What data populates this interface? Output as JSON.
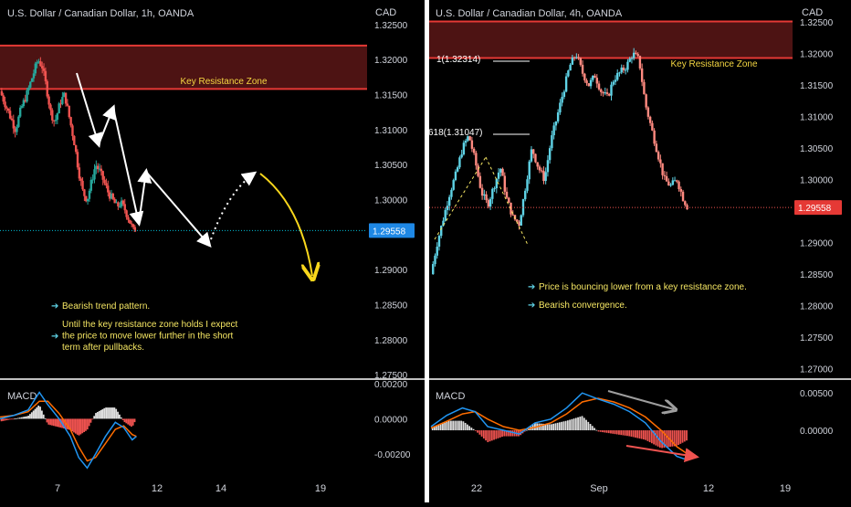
{
  "colors": {
    "bg": "#000000",
    "text": "#d1d4dc",
    "up": "#26a69a",
    "up_light": "#5fd3e6",
    "down": "#ef5350",
    "down_light": "#ff8a80",
    "zone_fill": "#5a1616",
    "zone_line": "#e53935",
    "zone_label": "#f5d742",
    "note_text": "#f5e663",
    "note_arrow": "#5fd3e6",
    "macd_line": "#2196f3",
    "signal_line": "#ff6d00",
    "hist_pos": "#e0e0e0",
    "hist_neg": "#ef5350",
    "price_line": "#00bcd4",
    "arrow_white": "#ffffff",
    "arrow_yellow": "#f9d71c",
    "divergence_gray": "#9e9e9e"
  },
  "left_panel": {
    "title": "U.S. Dollar / Canadian Dollar, 1h, OANDA",
    "currency": "CAD",
    "price_ticks": [
      "1.32500",
      "1.32000",
      "1.31500",
      "1.31000",
      "1.30500",
      "1.30000",
      "1.29000",
      "1.28500",
      "1.28000",
      "1.27500"
    ],
    "current_price": "1.29558",
    "zone_label": "Key Resistance Zone",
    "macd_label": "MACD",
    "macd_ticks": [
      "0.00200",
      "0.00000",
      "-0.00200"
    ],
    "date_ticks": [
      "7",
      "12",
      "14",
      "19"
    ],
    "notes": [
      "Bearish trend pattern.",
      "Until the key resistance zone holds I expect the price to move lower further in the short term after pullbacks."
    ]
  },
  "right_panel": {
    "title": "U.S. Dollar / Canadian Dollar, 4h, OANDA",
    "currency": "CAD",
    "price_ticks": [
      "1.32500",
      "1.32000",
      "1.31500",
      "1.31000",
      "1.30500",
      "1.30000",
      "1.29000",
      "1.28500",
      "1.28000",
      "1.27500",
      "1.27000"
    ],
    "current_price": "1.29558",
    "zone_label": "Key Resistance Zone",
    "fib_labels": [
      "1(1.32314)",
      "618(1.31047)"
    ],
    "macd_label": "MACD",
    "macd_ticks": [
      "0.00500",
      "0.00000"
    ],
    "date_ticks": [
      "22",
      "Sep",
      "12",
      "19"
    ],
    "notes": [
      "Price is bouncing lower from a key resistance zone.",
      "Bearish convergence."
    ]
  },
  "chart_data": [
    {
      "type": "candlestick",
      "title": "U.S. Dollar / Canadian Dollar, 1h, OANDA",
      "ylabel": "CAD",
      "ylim": [
        1.2745,
        1.3285
      ],
      "current_price": 1.29558,
      "resistance_zone": [
        1.3158,
        1.322
      ],
      "x_ticks": [
        "7",
        "12",
        "14",
        "19"
      ],
      "close_path": [
        {
          "x": 0,
          "y": 1.3155
        },
        {
          "x": 3,
          "y": 1.314
        },
        {
          "x": 7,
          "y": 1.312
        },
        {
          "x": 11,
          "y": 1.31
        },
        {
          "x": 15,
          "y": 1.313
        },
        {
          "x": 19,
          "y": 1.315
        },
        {
          "x": 23,
          "y": 1.3175
        },
        {
          "x": 27,
          "y": 1.32
        },
        {
          "x": 30,
          "y": 1.319
        },
        {
          "x": 33,
          "y": 1.316
        },
        {
          "x": 36,
          "y": 1.3125
        },
        {
          "x": 39,
          "y": 1.311
        },
        {
          "x": 43,
          "y": 1.314
        },
        {
          "x": 46,
          "y": 1.315
        },
        {
          "x": 49,
          "y": 1.312
        },
        {
          "x": 53,
          "y": 1.308
        },
        {
          "x": 56,
          "y": 1.304
        },
        {
          "x": 59,
          "y": 1.301
        },
        {
          "x": 62,
          "y": 1.3
        },
        {
          "x": 65,
          "y": 1.3025
        },
        {
          "x": 68,
          "y": 1.305
        },
        {
          "x": 71,
          "y": 1.304
        },
        {
          "x": 74,
          "y": 1.3025
        },
        {
          "x": 77,
          "y": 1.301
        },
        {
          "x": 80,
          "y": 1.3
        },
        {
          "x": 83,
          "y": 1.299
        },
        {
          "x": 86,
          "y": 1.2995
        },
        {
          "x": 89,
          "y": 1.2985
        },
        {
          "x": 92,
          "y": 1.297
        },
        {
          "x": 95,
          "y": 1.2955
        },
        {
          "x": 97,
          "y": 1.296
        }
      ],
      "x_range": [
        0,
        150
      ],
      "macd": {
        "ylim": [
          -0.0032,
          0.0021
        ],
        "macd_line": [
          {
            "x": 0,
            "y": 0.0
          },
          {
            "x": 10,
            "y": 0.0002
          },
          {
            "x": 20,
            "y": 0.0005
          },
          {
            "x": 28,
            "y": 0.0015
          },
          {
            "x": 34,
            "y": 0.0008
          },
          {
            "x": 42,
            "y": 0.0
          },
          {
            "x": 50,
            "y": -0.001
          },
          {
            "x": 56,
            "y": -0.0022
          },
          {
            "x": 62,
            "y": -0.0028
          },
          {
            "x": 68,
            "y": -0.002
          },
          {
            "x": 75,
            "y": -0.001
          },
          {
            "x": 82,
            "y": -0.0002
          },
          {
            "x": 88,
            "y": -0.0005
          },
          {
            "x": 94,
            "y": -0.0012
          },
          {
            "x": 97,
            "y": -0.001
          }
        ],
        "signal_line": [
          {
            "x": 0,
            "y": 0.0001
          },
          {
            "x": 10,
            "y": 0.0002
          },
          {
            "x": 20,
            "y": 0.0004
          },
          {
            "x": 28,
            "y": 0.001
          },
          {
            "x": 34,
            "y": 0.001
          },
          {
            "x": 42,
            "y": 0.0003
          },
          {
            "x": 50,
            "y": -0.0006
          },
          {
            "x": 56,
            "y": -0.0016
          },
          {
            "x": 62,
            "y": -0.0024
          },
          {
            "x": 68,
            "y": -0.0022
          },
          {
            "x": 75,
            "y": -0.0014
          },
          {
            "x": 82,
            "y": -0.0006
          },
          {
            "x": 88,
            "y": -0.0004
          },
          {
            "x": 94,
            "y": -0.0009
          },
          {
            "x": 97,
            "y": -0.001
          }
        ]
      }
    },
    {
      "type": "candlestick",
      "title": "U.S. Dollar / Canadian Dollar, 4h, OANDA",
      "ylabel": "CAD",
      "ylim": [
        1.2685,
        1.3285
      ],
      "current_price": 1.29558,
      "resistance_zone": [
        1.3193,
        1.3251
      ],
      "fib_levels": [
        {
          "label": "1(1.32314)",
          "price": 1.32314
        },
        {
          "label": "618(1.31047)",
          "price": 1.31047
        }
      ],
      "x_ticks": [
        "22",
        "Sep",
        "12",
        "19"
      ],
      "close_path": [
        {
          "x": 0,
          "y": 1.285
        },
        {
          "x": 4,
          "y": 1.29
        },
        {
          "x": 8,
          "y": 1.294
        },
        {
          "x": 12,
          "y": 1.298
        },
        {
          "x": 16,
          "y": 1.301
        },
        {
          "x": 20,
          "y": 1.305
        },
        {
          "x": 24,
          "y": 1.307
        },
        {
          "x": 28,
          "y": 1.303
        },
        {
          "x": 32,
          "y": 1.298
        },
        {
          "x": 36,
          "y": 1.296
        },
        {
          "x": 40,
          "y": 1.299
        },
        {
          "x": 44,
          "y": 1.302
        },
        {
          "x": 48,
          "y": 1.297
        },
        {
          "x": 52,
          "y": 1.294
        },
        {
          "x": 56,
          "y": 1.293
        },
        {
          "x": 60,
          "y": 1.299
        },
        {
          "x": 64,
          "y": 1.305
        },
        {
          "x": 68,
          "y": 1.302
        },
        {
          "x": 72,
          "y": 1.3
        },
        {
          "x": 76,
          "y": 1.306
        },
        {
          "x": 80,
          "y": 1.31
        },
        {
          "x": 84,
          "y": 1.314
        },
        {
          "x": 88,
          "y": 1.318
        },
        {
          "x": 92,
          "y": 1.32
        },
        {
          "x": 96,
          "y": 1.317
        },
        {
          "x": 100,
          "y": 1.315
        },
        {
          "x": 104,
          "y": 1.3165
        },
        {
          "x": 108,
          "y": 1.314
        },
        {
          "x": 112,
          "y": 1.313
        },
        {
          "x": 116,
          "y": 1.316
        },
        {
          "x": 120,
          "y": 1.317
        },
        {
          "x": 124,
          "y": 1.318
        },
        {
          "x": 128,
          "y": 1.32
        },
        {
          "x": 132,
          "y": 1.319
        },
        {
          "x": 136,
          "y": 1.312
        },
        {
          "x": 140,
          "y": 1.308
        },
        {
          "x": 144,
          "y": 1.304
        },
        {
          "x": 148,
          "y": 1.3
        },
        {
          "x": 152,
          "y": 1.299
        },
        {
          "x": 156,
          "y": 1.3
        },
        {
          "x": 160,
          "y": 1.297
        },
        {
          "x": 163,
          "y": 1.2955
        }
      ],
      "x_range": [
        0,
        190
      ],
      "macd": {
        "ylim": [
          -0.006,
          0.0065
        ],
        "macd_line": [
          {
            "x": 0,
            "y": 0.0005
          },
          {
            "x": 10,
            "y": 0.002
          },
          {
            "x": 20,
            "y": 0.003
          },
          {
            "x": 28,
            "y": 0.0025
          },
          {
            "x": 36,
            "y": 0.0005
          },
          {
            "x": 46,
            "y": 0.0
          },
          {
            "x": 56,
            "y": -0.0005
          },
          {
            "x": 66,
            "y": 0.001
          },
          {
            "x": 76,
            "y": 0.0015
          },
          {
            "x": 86,
            "y": 0.003
          },
          {
            "x": 96,
            "y": 0.005
          },
          {
            "x": 106,
            "y": 0.0042
          },
          {
            "x": 116,
            "y": 0.0035
          },
          {
            "x": 126,
            "y": 0.0025
          },
          {
            "x": 136,
            "y": 0.001
          },
          {
            "x": 146,
            "y": -0.0015
          },
          {
            "x": 156,
            "y": -0.0035
          },
          {
            "x": 163,
            "y": -0.004
          }
        ],
        "signal_line": [
          {
            "x": 0,
            "y": 0.0003
          },
          {
            "x": 10,
            "y": 0.0012
          },
          {
            "x": 20,
            "y": 0.0022
          },
          {
            "x": 28,
            "y": 0.0025
          },
          {
            "x": 36,
            "y": 0.0015
          },
          {
            "x": 46,
            "y": 0.0005
          },
          {
            "x": 56,
            "y": 0.0
          },
          {
            "x": 66,
            "y": 0.0004
          },
          {
            "x": 76,
            "y": 0.001
          },
          {
            "x": 86,
            "y": 0.0022
          },
          {
            "x": 96,
            "y": 0.0038
          },
          {
            "x": 106,
            "y": 0.0043
          },
          {
            "x": 116,
            "y": 0.0038
          },
          {
            "x": 126,
            "y": 0.003
          },
          {
            "x": 136,
            "y": 0.0018
          },
          {
            "x": 146,
            "y": 0.0
          },
          {
            "x": 156,
            "y": -0.0022
          },
          {
            "x": 163,
            "y": -0.0032
          }
        ]
      }
    }
  ]
}
